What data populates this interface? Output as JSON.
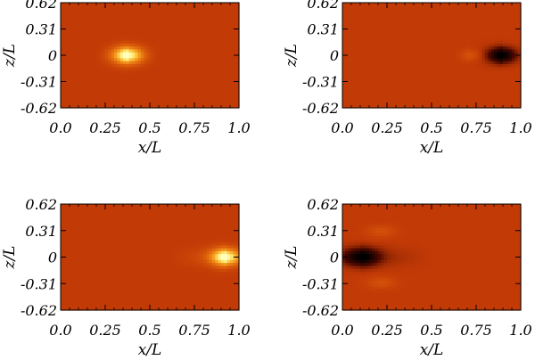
{
  "chart_data": [
    {
      "type": "heatmap",
      "xlabel": "x/L",
      "ylabel": "z/L",
      "x_ticks": [
        "0.0",
        "0.25",
        "0.5",
        "0.75",
        "1.0"
      ],
      "y_ticks": [
        "0.62",
        "0.31",
        "0",
        "-0.31",
        "-0.62"
      ],
      "xlim": [
        0,
        1.0
      ],
      "ylim": [
        -0.62,
        0.62
      ],
      "background_level": 0.35,
      "features": [
        {
          "kind": "bright",
          "x": 0.38,
          "z": 0.0,
          "sigma_x": 0.06,
          "sigma_z": 0.07,
          "amplitude": 0.65,
          "tail_to_x": 0.2
        }
      ]
    },
    {
      "type": "heatmap",
      "xlabel": "x/L",
      "ylabel": "z/L",
      "x_ticks": [
        "0.0",
        "0.25",
        "0.5",
        "0.75",
        "1.0"
      ],
      "y_ticks": [
        "0.62",
        "0.31",
        "0",
        "-0.31",
        "-0.62"
      ],
      "xlim": [
        0,
        1.0
      ],
      "ylim": [
        -0.62,
        0.62
      ],
      "background_level": 0.35,
      "features": [
        {
          "kind": "dark",
          "x": 0.9,
          "z": 0.0,
          "sigma_x": 0.05,
          "sigma_z": 0.06,
          "amplitude": -0.35,
          "tail_to_x": 0.6
        },
        {
          "kind": "bright",
          "x": 0.72,
          "z": 0.0,
          "sigma_x": 0.04,
          "sigma_z": 0.05,
          "amplitude": 0.12,
          "tail_to_x": 0.6
        }
      ]
    },
    {
      "type": "heatmap",
      "xlabel": "x/L",
      "ylabel": "z/L",
      "x_ticks": [
        "0.0",
        "0.25",
        "0.5",
        "0.75",
        "1.0"
      ],
      "y_ticks": [
        "0.62",
        "0.31",
        "0",
        "-0.31",
        "-0.62"
      ],
      "xlim": [
        0,
        1.0
      ],
      "ylim": [
        -0.62,
        0.62
      ],
      "background_level": 0.35,
      "features": [
        {
          "kind": "bright",
          "x": 0.93,
          "z": 0.0,
          "sigma_x": 0.06,
          "sigma_z": 0.07,
          "amplitude": 0.65,
          "tail_to_x": 0.6
        }
      ]
    },
    {
      "type": "heatmap",
      "xlabel": "x/L",
      "ylabel": "z/L",
      "x_ticks": [
        "0.0",
        "0.25",
        "0.5",
        "0.75",
        "1.0"
      ],
      "y_ticks": [
        "0.62",
        "0.31",
        "0",
        "-0.31",
        "-0.62"
      ],
      "xlim": [
        0,
        1.0
      ],
      "ylim": [
        -0.62,
        0.62
      ],
      "background_level": 0.35,
      "features": [
        {
          "kind": "dark",
          "x": 0.1,
          "z": 0.0,
          "sigma_x": 0.07,
          "sigma_z": 0.07,
          "amplitude": -0.35,
          "tail_to_x": 0.5
        },
        {
          "kind": "bright",
          "x": 0.22,
          "z": 0.3,
          "sigma_x": 0.06,
          "sigma_z": 0.05,
          "amplitude": 0.1,
          "tail_to_x": 0.22
        },
        {
          "kind": "bright",
          "x": 0.22,
          "z": -0.3,
          "sigma_x": 0.06,
          "sigma_z": 0.05,
          "amplitude": 0.1,
          "tail_to_x": 0.22
        }
      ]
    }
  ],
  "colormap": {
    "name": "red-temperature",
    "stops": [
      [
        0.0,
        "#000000"
      ],
      [
        0.2,
        "#4a0800"
      ],
      [
        0.35,
        "#c23a06"
      ],
      [
        0.55,
        "#e0660c"
      ],
      [
        0.75,
        "#f6a020"
      ],
      [
        0.9,
        "#ffe060"
      ],
      [
        1.0,
        "#ffffc0"
      ]
    ]
  }
}
